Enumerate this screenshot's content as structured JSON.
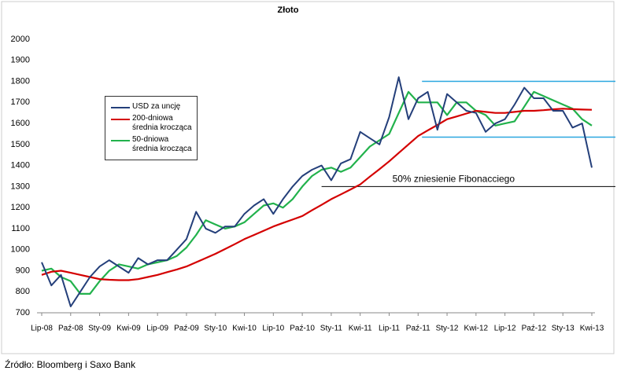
{
  "chart_data": {
    "type": "line",
    "title": "Złoto",
    "source": "Źródło: Bloomberg i Saxo Bank",
    "categories": [
      "Lip-08",
      null,
      null,
      "Paź-08",
      null,
      null,
      "Sty-09",
      null,
      null,
      "Kwi-09",
      null,
      null,
      "Lip-09",
      null,
      null,
      "Paź-09",
      null,
      null,
      "Sty-10",
      null,
      null,
      "Kwi-10",
      null,
      null,
      "Lip-10",
      null,
      null,
      "Paź-10",
      null,
      null,
      "Sty-11",
      null,
      null,
      "Kwi-11",
      null,
      null,
      "Lip-11",
      null,
      null,
      "Paź-11",
      null,
      null,
      "Sty-12",
      null,
      null,
      "Kwi-12",
      null,
      null,
      "Lip-12",
      null,
      null,
      "Paź-12",
      null,
      null,
      "Sty-13",
      null,
      null,
      "Kwi-13"
    ],
    "series": [
      {
        "name": "USD za uncję",
        "color": "#243f7a",
        "values": [
          940,
          830,
          880,
          730,
          800,
          870,
          920,
          950,
          920,
          890,
          960,
          930,
          950,
          950,
          1000,
          1050,
          1180,
          1100,
          1080,
          1110,
          1110,
          1170,
          1210,
          1240,
          1170,
          1240,
          1300,
          1350,
          1380,
          1400,
          1330,
          1410,
          1430,
          1560,
          1530,
          1500,
          1630,
          1820,
          1620,
          1720,
          1750,
          1570,
          1740,
          1700,
          1660,
          1650,
          1560,
          1600,
          1620,
          1690,
          1770,
          1720,
          1720,
          1660,
          1660,
          1580,
          1600,
          1390
        ]
      },
      {
        "name": "200-dniowa średnia krocząca",
        "color": "#d40000",
        "values": [
          880,
          895,
          900,
          890,
          880,
          870,
          860,
          857,
          855,
          855,
          860,
          870,
          880,
          893,
          906,
          920,
          940,
          960,
          980,
          1003,
          1026,
          1050,
          1070,
          1090,
          1110,
          1127,
          1143,
          1160,
          1187,
          1213,
          1240,
          1263,
          1286,
          1310,
          1347,
          1383,
          1420,
          1460,
          1500,
          1540,
          1567,
          1593,
          1620,
          1633,
          1647,
          1660,
          1655,
          1650,
          1650,
          1655,
          1660,
          1660,
          1663,
          1667,
          1670,
          1668,
          1666,
          1665
        ]
      },
      {
        "name": "50-dniowa średnia krocząca",
        "color": "#22b24c",
        "values": [
          900,
          910,
          870,
          850,
          790,
          790,
          850,
          900,
          930,
          920,
          910,
          930,
          940,
          950,
          970,
          1010,
          1070,
          1140,
          1120,
          1100,
          1110,
          1130,
          1170,
          1210,
          1220,
          1200,
          1240,
          1300,
          1350,
          1380,
          1390,
          1370,
          1390,
          1440,
          1490,
          1520,
          1550,
          1650,
          1750,
          1700,
          1700,
          1700,
          1640,
          1700,
          1700,
          1660,
          1640,
          1590,
          1600,
          1610,
          1680,
          1750,
          1730,
          1710,
          1690,
          1670,
          1620,
          1590
        ]
      }
    ],
    "reference_lines": [
      {
        "value": 1800,
        "color": "#2aa7e0"
      },
      {
        "value": 1535,
        "color": "#2aa7e0"
      },
      {
        "value": 1300,
        "color": "#000000",
        "label": "50% zniesienie Fibonacciego"
      }
    ],
    "ylim": [
      700,
      2000
    ],
    "yticks": [
      700,
      800,
      900,
      1000,
      1100,
      1200,
      1300,
      1400,
      1500,
      1600,
      1700,
      1800,
      1900,
      2000
    ],
    "grid": false
  }
}
